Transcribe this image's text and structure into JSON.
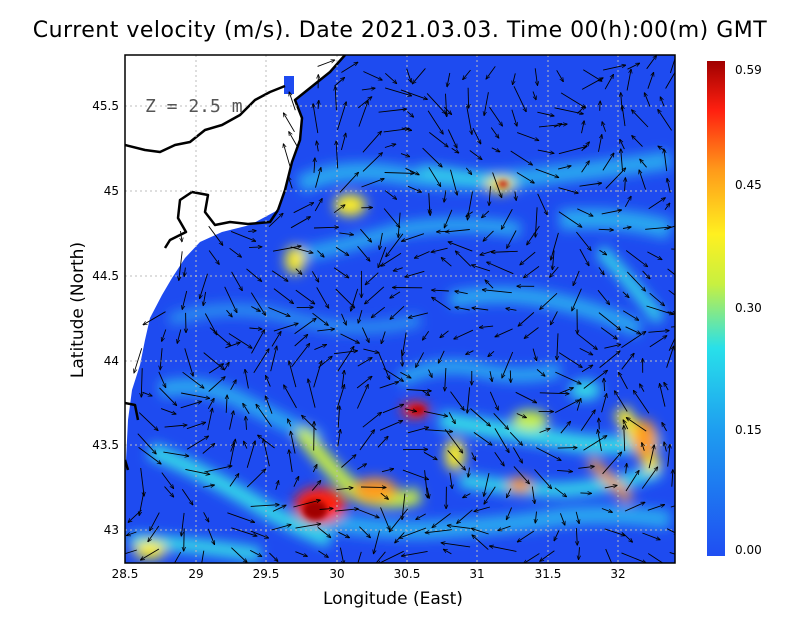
{
  "title": "Current velocity (m/s). Date 2021.03.03. Time 00(h):00(m) GMT",
  "colors": {
    "frame": "#000000",
    "grid": "#bdbdbd",
    "land": "#ffffff",
    "coast": "#000000",
    "sea_low": "#1e4bf0"
  },
  "map": {
    "depth_label": "Z = 2.5 m",
    "xlabel": "Longitude (East)",
    "ylabel": "Latitude (North)",
    "lon_range": [
      28.5,
      32.4
    ],
    "lat_range": [
      42.8,
      45.8
    ],
    "x_ticks": [
      "28.5",
      "29",
      "29.5",
      "30",
      "30.5",
      "31",
      "31.5",
      "32"
    ],
    "y_ticks": [
      "43",
      "43.5",
      "44",
      "44.5",
      "45",
      "45.5"
    ],
    "grid": "dotted"
  },
  "colorbar": {
    "min": 0.0,
    "max": 0.59,
    "ticks": [
      "0.00",
      "0.15",
      "0.30",
      "0.45",
      "0.59"
    ],
    "stops": [
      "#1f4ef2",
      "#1e9cf0",
      "#28e0ea",
      "#c8f040",
      "#fff020",
      "#ff9a1a",
      "#ff2010",
      "#a00000"
    ]
  }
}
